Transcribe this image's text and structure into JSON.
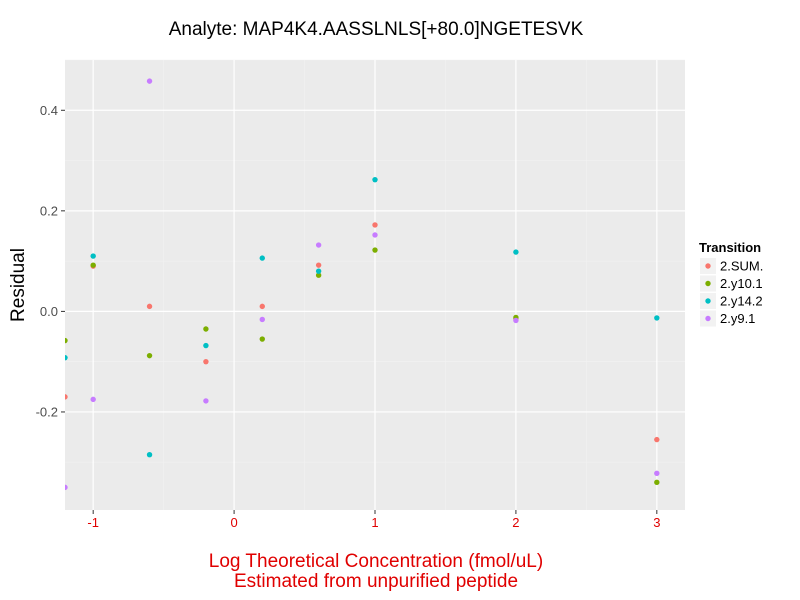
{
  "chart_data": {
    "type": "scatter",
    "title": "Analyte: MAP4K4.AASSLNLS[+80.0]NGETESVK",
    "xlabel_line1": "Log Theoretical Concentration (fmol/uL)",
    "xlabel_line2": "Estimated from unpurified peptide",
    "ylabel": "Residual",
    "xlim": [
      -1.2,
      3.2
    ],
    "ylim": [
      -0.395,
      0.5
    ],
    "x_ticks": [
      {
        "value": -1,
        "label": "-1"
      },
      {
        "value": 0,
        "label": "0"
      },
      {
        "value": 1,
        "label": "1"
      },
      {
        "value": 2,
        "label": "2"
      },
      {
        "value": 3,
        "label": "3"
      }
    ],
    "y_ticks": [
      {
        "value": -0.2,
        "label": "-0.2"
      },
      {
        "value": 0.0,
        "label": "0.0"
      },
      {
        "value": 0.2,
        "label": "0.2"
      },
      {
        "value": 0.4,
        "label": "0.4"
      }
    ],
    "x_label_color": "#e00000",
    "x_tick_color": "#e00000",
    "legend": {
      "title": "Transition",
      "position": "right"
    },
    "grid": true,
    "series": [
      {
        "name": "2.SUM.",
        "color": "#F8766D",
        "points": [
          [
            -1.2,
            -0.17
          ],
          [
            -1.0,
            0.09
          ],
          [
            -0.6,
            0.01
          ],
          [
            -0.2,
            -0.1
          ],
          [
            0.2,
            0.01
          ],
          [
            0.6,
            0.092
          ],
          [
            1.0,
            0.172
          ],
          [
            2.0,
            -0.015
          ],
          [
            3.0,
            -0.255
          ]
        ]
      },
      {
        "name": "2.y10.1",
        "color": "#7CAE00",
        "points": [
          [
            -1.2,
            -0.058
          ],
          [
            -1.0,
            0.092
          ],
          [
            -0.6,
            -0.088
          ],
          [
            -0.2,
            -0.035
          ],
          [
            0.2,
            -0.055
          ],
          [
            0.6,
            0.072
          ],
          [
            1.0,
            0.122
          ],
          [
            2.0,
            -0.012
          ],
          [
            3.0,
            -0.34
          ]
        ]
      },
      {
        "name": "2.y14.2",
        "color": "#00BFC4",
        "points": [
          [
            -1.2,
            -0.092
          ],
          [
            -1.0,
            0.11
          ],
          [
            -0.6,
            -0.285
          ],
          [
            -0.2,
            -0.068
          ],
          [
            0.2,
            0.106
          ],
          [
            0.6,
            0.08
          ],
          [
            1.0,
            0.262
          ],
          [
            2.0,
            0.118
          ],
          [
            3.0,
            -0.013
          ]
        ]
      },
      {
        "name": "2.y9.1",
        "color": "#C77CFF",
        "points": [
          [
            -1.2,
            -0.35
          ],
          [
            -1.0,
            -0.175
          ],
          [
            -0.6,
            0.458
          ],
          [
            -0.2,
            -0.178
          ],
          [
            0.2,
            -0.016
          ],
          [
            0.6,
            0.132
          ],
          [
            1.0,
            0.152
          ],
          [
            2.0,
            -0.018
          ],
          [
            3.0,
            -0.322
          ]
        ]
      }
    ]
  }
}
